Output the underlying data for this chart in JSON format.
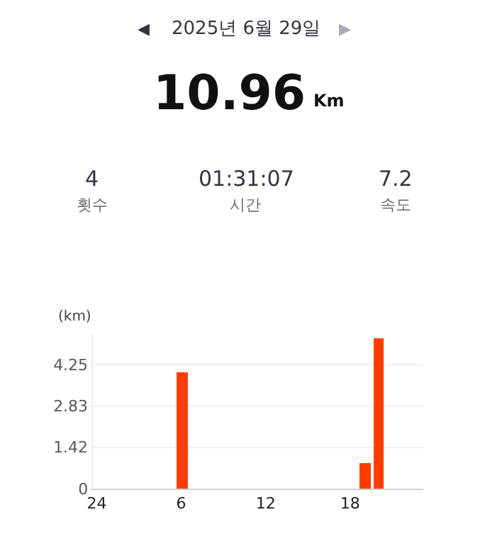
{
  "chart_data": {
    "type": "bar",
    "title": "2025년 6월 29일",
    "annotations": [
      "◀",
      "▶",
      "10.96",
      "Km",
      "4",
      "횟수",
      "01:31:07",
      "시간",
      "7.2",
      "속도"
    ],
    "ylabel": "(km)",
    "categories": [
      "24",
      null,
      null,
      null,
      null,
      null,
      "6",
      null,
      null,
      null,
      null,
      null,
      "12",
      null,
      null,
      null,
      null,
      null,
      "18",
      null,
      null,
      null,
      null,
      null
    ],
    "values": [
      null,
      null,
      null,
      null,
      null,
      null,
      3.98,
      null,
      null,
      null,
      null,
      null,
      null,
      null,
      null,
      null,
      null,
      null,
      null,
      0.87,
      5.13,
      null,
      null,
      null
    ],
    "color": "#ff3d00",
    "ylim": [
      0,
      5.3
    ],
    "yticks": [
      0,
      1.42,
      2.83,
      4.25
    ],
    "grid": "y",
    "legend": false
  }
}
